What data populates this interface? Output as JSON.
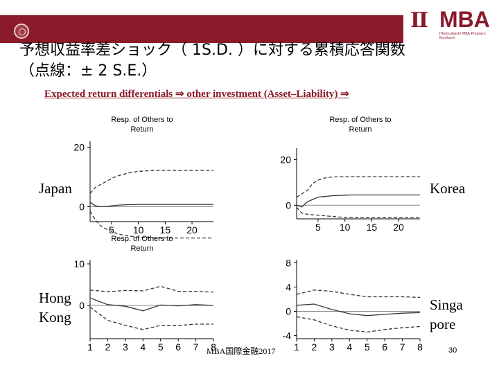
{
  "header": {
    "logo_mark": "II",
    "logo_text": "MBA",
    "logo_sub": "Hitotsubashi MBA Program Kunitachi"
  },
  "title_line1": "予想収益率差ショック（ 1S.D. ）に対する累積応答関数",
  "title_line2": "（点線：± 2 S.E.）",
  "subtitle": "Expected return differentials ⇒ other investment (Asset–Liability) ⇒",
  "footer": "MBA国際金融2017",
  "page_number": "30",
  "colors": {
    "brand": "#8b1a2b",
    "line": "#333333",
    "zero": "#888888"
  },
  "chart_data": [
    {
      "type": "line",
      "country_label": "Japan",
      "chart_title": "Resp. of Others to Return",
      "xticks": [
        5,
        10,
        15,
        20
      ],
      "yticks": [
        0,
        20
      ],
      "xlim": [
        1,
        24
      ],
      "ylim": [
        -5,
        22
      ],
      "x": [
        1,
        2,
        3,
        4,
        5,
        6,
        7,
        8,
        9,
        10,
        11,
        12,
        13,
        14,
        15,
        16,
        17,
        18,
        19,
        20,
        21,
        22,
        23,
        24
      ],
      "series": [
        {
          "style": "solid",
          "values": [
            1.5,
            0.3,
            0.0,
            0.1,
            0.3,
            0.5,
            0.6,
            0.7,
            0.7,
            0.8,
            0.8,
            0.8,
            0.8,
            0.8,
            0.8,
            0.8,
            0.8,
            0.8,
            0.8,
            0.8,
            0.8,
            0.8,
            0.8,
            0.8
          ]
        },
        {
          "style": "dashed",
          "values": [
            4.5,
            6.5,
            7.5,
            8.5,
            9.5,
            10.3,
            10.8,
            11.3,
            11.6,
            11.9,
            12.0,
            12.1,
            12.2,
            12.2,
            12.2,
            12.2,
            12.2,
            12.2,
            12.2,
            12.2,
            12.2,
            12.2,
            12.2,
            12.2
          ]
        },
        {
          "style": "dashed",
          "values": [
            -1.5,
            -4.5,
            -6.5,
            -7.5,
            -8.3,
            -9.0,
            -9.5,
            -9.8,
            -10.0,
            -10.2,
            -10.3,
            -10.4,
            -10.5,
            -10.5,
            -10.5,
            -10.5,
            -10.5,
            -10.5,
            -10.5,
            -10.5,
            -10.5,
            -10.5,
            -10.5,
            -10.5
          ]
        }
      ]
    },
    {
      "type": "line",
      "country_label": "Korea",
      "chart_title": "Resp. of Others to Return",
      "xticks": [
        5,
        10,
        15,
        20
      ],
      "yticks": [
        0,
        20
      ],
      "xlim": [
        1,
        24
      ],
      "ylim": [
        -6,
        25
      ],
      "x": [
        1,
        2,
        3,
        4,
        5,
        6,
        7,
        8,
        9,
        10,
        11,
        12,
        13,
        14,
        15,
        16,
        17,
        18,
        19,
        20,
        21,
        22,
        23,
        24
      ],
      "series": [
        {
          "style": "solid",
          "values": [
            0.0,
            -0.8,
            1.5,
            2.5,
            3.5,
            3.8,
            4.0,
            4.2,
            4.3,
            4.4,
            4.5,
            4.5,
            4.5,
            4.5,
            4.5,
            4.5,
            4.5,
            4.5,
            4.5,
            4.5,
            4.5,
            4.5,
            4.5,
            4.5
          ]
        },
        {
          "style": "dashed",
          "values": [
            3.5,
            5.0,
            6.5,
            9.5,
            11.0,
            11.8,
            12.2,
            12.4,
            12.5,
            12.5,
            12.5,
            12.5,
            12.5,
            12.5,
            12.5,
            12.5,
            12.5,
            12.5,
            12.5,
            12.5,
            12.5,
            12.5,
            12.5,
            12.5
          ]
        },
        {
          "style": "dashed",
          "values": [
            -1.0,
            -3.5,
            -4.0,
            -4.2,
            -4.4,
            -4.6,
            -4.8,
            -5.0,
            -5.2,
            -5.3,
            -5.4,
            -5.5,
            -5.5,
            -5.5,
            -5.5,
            -5.5,
            -5.5,
            -5.5,
            -5.5,
            -5.5,
            -5.5,
            -5.5,
            -5.5,
            -5.5
          ]
        }
      ]
    },
    {
      "type": "line",
      "country_label": "Hong Kong",
      "chart_title": "Resp. of Others to Return",
      "xticks": [
        1,
        2,
        3,
        4,
        5,
        6,
        7,
        8
      ],
      "yticks": [
        0,
        10
      ],
      "xlim": [
        1,
        8
      ],
      "ylim": [
        -8,
        11
      ],
      "x": [
        1,
        2,
        3,
        4,
        5,
        6,
        7,
        8
      ],
      "series": [
        {
          "style": "solid",
          "values": [
            1.8,
            0.2,
            -0.2,
            -1.3,
            0.1,
            -0.1,
            0.2,
            0.0
          ]
        },
        {
          "style": "dashed",
          "values": [
            3.7,
            3.3,
            3.6,
            3.5,
            4.6,
            3.4,
            3.4,
            3.2
          ]
        },
        {
          "style": "dashed",
          "values": [
            -0.4,
            -3.6,
            -4.8,
            -5.8,
            -4.8,
            -4.8,
            -4.5,
            -4.5
          ]
        }
      ]
    },
    {
      "type": "line",
      "country_label": "Singa pore",
      "chart_title": "",
      "xticks": [
        1,
        2,
        3,
        4,
        5,
        6,
        7,
        8
      ],
      "yticks": [
        -4,
        0,
        4,
        8
      ],
      "xlim": [
        1,
        8
      ],
      "ylim": [
        -4.5,
        8.5
      ],
      "x": [
        1,
        2,
        3,
        4,
        5,
        6,
        7,
        8
      ],
      "series": [
        {
          "style": "solid",
          "values": [
            1.0,
            1.2,
            0.3,
            -0.4,
            -0.7,
            -0.5,
            -0.3,
            -0.2
          ]
        },
        {
          "style": "dashed",
          "values": [
            2.8,
            3.5,
            3.3,
            2.8,
            2.4,
            2.4,
            2.4,
            2.3
          ]
        },
        {
          "style": "dashed",
          "values": [
            -0.9,
            -1.4,
            -2.4,
            -3.1,
            -3.4,
            -3.0,
            -2.7,
            -2.5
          ]
        }
      ]
    }
  ]
}
